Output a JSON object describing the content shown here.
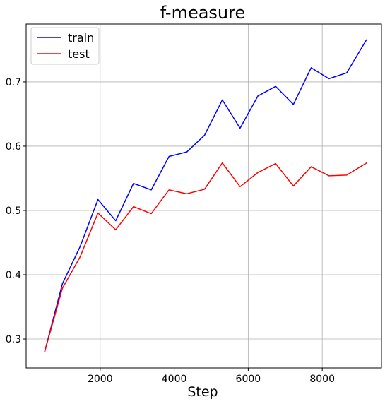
{
  "chart_data": {
    "type": "line",
    "title": "f-measure",
    "xlabel": "Step",
    "ylabel": "",
    "xlim": [
      0,
      9600
    ],
    "ylim": [
      0.255,
      0.79
    ],
    "xticks": [
      2000,
      4000,
      6000,
      8000
    ],
    "yticks": [
      0.3,
      0.4,
      0.5,
      0.6,
      0.7
    ],
    "grid": true,
    "legend": "top-left",
    "x": [
      500,
      980,
      1460,
      1940,
      2420,
      2900,
      3380,
      3860,
      4340,
      4820,
      5300,
      5780,
      6260,
      6740,
      7220,
      7700,
      8180,
      8660,
      9200
    ],
    "series": [
      {
        "name": "train",
        "color": "#0000ff",
        "values": [
          0.28,
          0.386,
          0.444,
          0.517,
          0.484,
          0.542,
          0.532,
          0.584,
          0.591,
          0.617,
          0.672,
          0.628,
          0.678,
          0.693,
          0.665,
          0.722,
          0.705,
          0.714,
          0.766
        ]
      },
      {
        "name": "test",
        "color": "#ff0000",
        "values": [
          0.28,
          0.379,
          0.428,
          0.496,
          0.47,
          0.506,
          0.495,
          0.532,
          0.526,
          0.533,
          0.574,
          0.537,
          0.559,
          0.573,
          0.538,
          0.568,
          0.554,
          0.555,
          0.574
        ]
      }
    ]
  }
}
